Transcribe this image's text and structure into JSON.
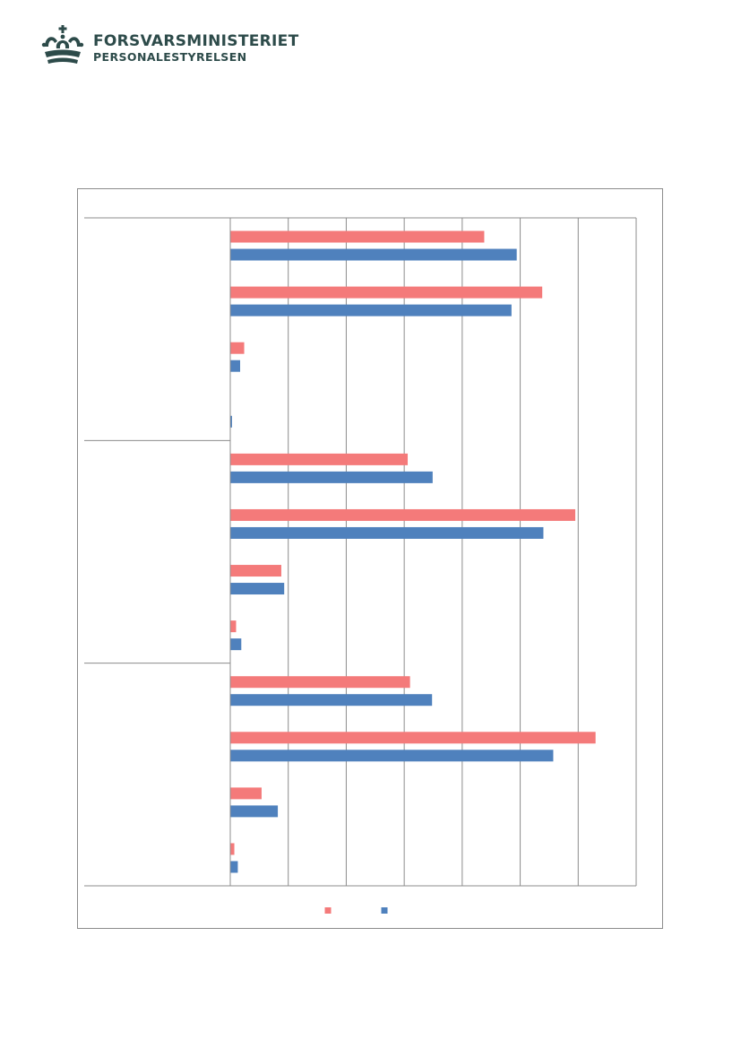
{
  "header": {
    "org_name": "FORSVARSMINISTERIET",
    "org_sub": "PERSONALESTYRELSEN",
    "logo_icon": "crown-icon",
    "logo_color": "#2d4b4a"
  },
  "chart_data": {
    "type": "bar",
    "orientation": "horizontal",
    "grid": true,
    "xlim": [
      0,
      7
    ],
    "groups": 3,
    "categories_per_group": 4,
    "series": [
      {
        "color": "#f47a7a",
        "values": [
          4.38,
          5.38,
          0.24,
          0,
          3.06,
          5.95,
          0.88,
          0.1,
          3.1,
          6.3,
          0.54,
          0.07
        ]
      },
      {
        "color": "#4f81bd",
        "values": [
          4.94,
          4.85,
          0.17,
          0.03,
          3.49,
          5.4,
          0.93,
          0.19,
          3.48,
          5.57,
          0.82,
          0.13
        ]
      }
    ],
    "legend_position": "bottom"
  }
}
